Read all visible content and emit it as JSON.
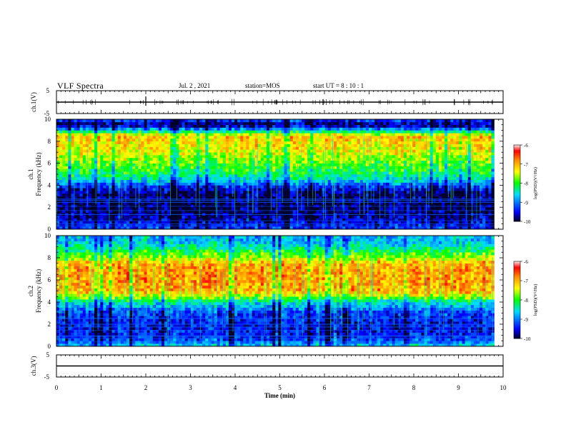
{
  "header": {
    "title": "VLF Spectra",
    "date": "Jul. 2 , 2021",
    "station": "station=MOS",
    "start": "start UT = 8 : 10 : 1"
  },
  "colors": {
    "scale": [
      "#00001e",
      "#0000ff",
      "#00e0ff",
      "#00ff00",
      "#ffff00",
      "#ff8800",
      "#ff0000",
      "#ffffff"
    ]
  },
  "chart_data": [
    {
      "type": "line",
      "name": "ch.1",
      "ylabel": "ch.1(V)",
      "ylim": [
        -5,
        5
      ],
      "yticks": [
        "5",
        "-5"
      ],
      "x": [
        0,
        10
      ],
      "values": [
        0,
        0
      ],
      "xlim": [
        0,
        10
      ]
    },
    {
      "type": "heatmap",
      "name": "ch.1 spectrogram",
      "ylabel_lines": [
        "ch.1",
        "Frequency (kHz)"
      ],
      "ylim": [
        0,
        10
      ],
      "yticks": [
        "0",
        "2",
        "4",
        "6",
        "8",
        "10"
      ],
      "xlim": [
        0,
        10
      ],
      "data_end_min": 9.8,
      "colorbar": {
        "label": "log(PSD)(V²/Hz)",
        "range": [
          -10,
          -6
        ],
        "ticks": [
          "-6",
          "-7",
          "-8",
          "-9",
          "-10"
        ]
      },
      "profile_freq_khz": [
        0,
        0.5,
        1,
        2,
        3,
        3.5,
        4,
        4.5,
        5,
        6,
        7,
        8,
        8.5,
        9,
        9.5,
        10
      ],
      "profile_log_psd": [
        -9.3,
        -9.5,
        -9.7,
        -9.9,
        -9.9,
        -9.7,
        -9.2,
        -8.6,
        -8.2,
        -7.8,
        -7.4,
        -7.2,
        -7.1,
        -8.6,
        -9.9,
        -9.2
      ]
    },
    {
      "type": "heatmap",
      "name": "ch.2 spectrogram",
      "ylabel_lines": [
        "ch.2",
        "Frequency (kHz)"
      ],
      "ylim": [
        0,
        10
      ],
      "yticks": [
        "0",
        "2",
        "4",
        "6",
        "8",
        "10"
      ],
      "xlim": [
        0,
        10
      ],
      "data_end_min": 9.8,
      "colorbar": {
        "label": "log(PSD)(V²/Hz)",
        "range": [
          -10,
          -6
        ],
        "ticks": [
          "-6",
          "-7",
          "-8",
          "-9",
          "-10"
        ]
      },
      "profile_freq_khz": [
        0,
        0.5,
        1,
        2,
        3,
        4,
        4.5,
        5,
        6,
        7,
        7.5,
        8,
        8.5,
        9,
        9.5,
        10
      ],
      "profile_log_psd": [
        -8.6,
        -9.1,
        -9.4,
        -9.5,
        -9.3,
        -8.5,
        -7.6,
        -7.0,
        -6.9,
        -6.9,
        -7.0,
        -7.6,
        -8.0,
        -8.4,
        -8.7,
        -8.7
      ]
    },
    {
      "type": "line",
      "name": "ch.3",
      "ylabel": "ch.3(V)",
      "ylim": [
        -5,
        5
      ],
      "yticks": [
        "5",
        "-5"
      ],
      "x": [
        0,
        10
      ],
      "values": [
        0,
        0
      ],
      "xlim": [
        0,
        10
      ]
    }
  ],
  "xaxis": {
    "label": "Time (min)",
    "ticks": [
      "0",
      "1",
      "2",
      "3",
      "4",
      "5",
      "6",
      "7",
      "8",
      "9",
      "10"
    ]
  }
}
